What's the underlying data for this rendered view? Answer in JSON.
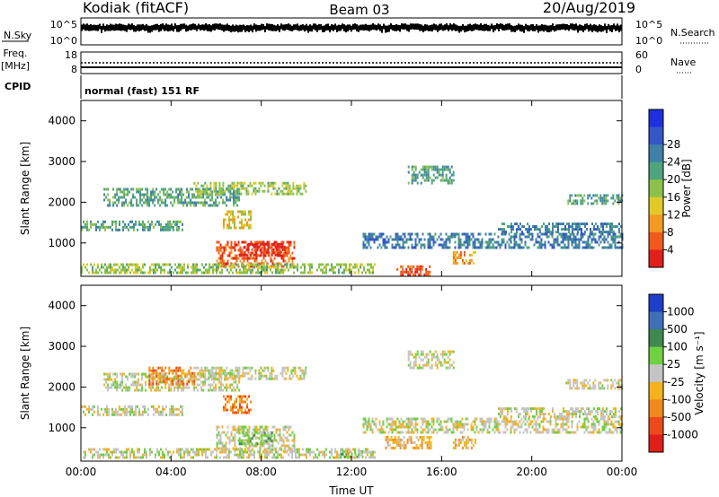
{
  "header": {
    "station": "Kodiak (fitACF)",
    "beam": "Beam 03",
    "date": "20/Aug/2019"
  },
  "top_panels": {
    "nsky_label": "N.Sky",
    "nsky_ticks": [
      "10^5",
      "10^0"
    ],
    "nsearch_label": "N.Search",
    "nsearch_ticks": [
      "10^5",
      "10^0"
    ],
    "freq_label_line1": "Freq.",
    "freq_label_line2": "[MHz]",
    "freq_ticks": [
      "18",
      "8"
    ],
    "nave_label": "Nave",
    "nave_ticks": [
      "60",
      "0"
    ],
    "cpid_label": "CPID",
    "cpid_value": "normal (fast) 151 RF"
  },
  "chart_data": [
    {
      "type": "heatmap",
      "name": "power",
      "ylabel": "Slant Range [km]",
      "xlabel": "Time UT",
      "ylim": [
        180,
        4500
      ],
      "yticks": [
        "1000",
        "2000",
        "3000",
        "4000"
      ],
      "colorbar_label": "Power [dB]",
      "colorbar_ticks": [
        "4",
        "8",
        "12",
        "16",
        "20",
        "24",
        "28"
      ],
      "colors": [
        "#1f2fe0",
        "#3557c6",
        "#3f7fa8",
        "#4fa47e",
        "#8bc14a",
        "#e2c92a",
        "#f29a22",
        "#ef5a1c",
        "#e0201a"
      ],
      "echo_regions": [
        {
          "t": [
            0.0,
            4.5
          ],
          "r": [
            1300,
            1550
          ],
          "level": 3
        },
        {
          "t": [
            1.0,
            7.0
          ],
          "r": [
            1900,
            2350
          ],
          "level": 3
        },
        {
          "t": [
            5.0,
            10.0
          ],
          "r": [
            2200,
            2500
          ],
          "level": 4
        },
        {
          "t": [
            6.3,
            7.5
          ],
          "r": [
            1400,
            1800
          ],
          "level": 5
        },
        {
          "t": [
            6.0,
            9.5
          ],
          "r": [
            400,
            1050
          ],
          "level": 7
        },
        {
          "t": [
            7.0,
            9.0
          ],
          "r": [
            700,
            1000
          ],
          "level": 8
        },
        {
          "t": [
            0.0,
            13.0
          ],
          "r": [
            250,
            500
          ],
          "level": 4
        },
        {
          "t": [
            14.0,
            15.5
          ],
          "r": [
            250,
            450
          ],
          "level": 7
        },
        {
          "t": [
            16.5,
            17.5
          ],
          "r": [
            500,
            800
          ],
          "level": 6
        },
        {
          "t": [
            14.5,
            16.5
          ],
          "r": [
            2500,
            2900
          ],
          "level": 3
        },
        {
          "t": [
            18.5,
            24.0
          ],
          "r": [
            1300,
            1500
          ],
          "level": 2
        },
        {
          "t": [
            12.5,
            24.0
          ],
          "r": [
            900,
            1250
          ],
          "level": 2
        },
        {
          "t": [
            21.5,
            24.0
          ],
          "r": [
            2000,
            2200
          ],
          "level": 3
        }
      ]
    },
    {
      "type": "heatmap",
      "name": "velocity",
      "ylabel": "Slant Range [km]",
      "xlabel": "Time UT",
      "ylim": [
        180,
        4500
      ],
      "yticks": [
        "1000",
        "2000",
        "3000",
        "4000"
      ],
      "colorbar_label": "Velocity [m s⁻¹]",
      "colorbar_ticks": [
        "1000",
        "500",
        "100",
        "25",
        "-25",
        "-100",
        "-500",
        "-1000"
      ],
      "colors": [
        "#1f3fc8",
        "#3f6fb8",
        "#3e8a4e",
        "#6fd040",
        "#c4c4c4",
        "#f5b21e",
        "#f08a1e",
        "#ec4a1a",
        "#e01f1a"
      ],
      "echo_regions": [
        {
          "t": [
            0.0,
            4.5
          ],
          "r": [
            1300,
            1550
          ],
          "level": 4
        },
        {
          "t": [
            1.0,
            7.0
          ],
          "r": [
            1900,
            2350
          ],
          "level": 4
        },
        {
          "t": [
            5.0,
            10.0
          ],
          "r": [
            2200,
            2500
          ],
          "level": 4
        },
        {
          "t": [
            6.3,
            7.5
          ],
          "r": [
            1400,
            1800
          ],
          "level": 6
        },
        {
          "t": [
            3.0,
            5.0
          ],
          "r": [
            2100,
            2500
          ],
          "level": 6
        },
        {
          "t": [
            6.0,
            9.5
          ],
          "r": [
            400,
            1050
          ],
          "level": 4
        },
        {
          "t": [
            7.0,
            8.5
          ],
          "r": [
            600,
            900
          ],
          "level": 3
        },
        {
          "t": [
            11.5,
            12.5
          ],
          "r": [
            300,
            450
          ],
          "level": 3
        },
        {
          "t": [
            0.0,
            13.0
          ],
          "r": [
            250,
            500
          ],
          "level": 4
        },
        {
          "t": [
            13.5,
            15.5
          ],
          "r": [
            500,
            800
          ],
          "level": 5
        },
        {
          "t": [
            16.5,
            17.5
          ],
          "r": [
            500,
            800
          ],
          "level": 5
        },
        {
          "t": [
            14.5,
            16.5
          ],
          "r": [
            2500,
            2900
          ],
          "level": 4
        },
        {
          "t": [
            18.5,
            24.0
          ],
          "r": [
            1300,
            1500
          ],
          "level": 4
        },
        {
          "t": [
            12.5,
            24.0
          ],
          "r": [
            900,
            1250
          ],
          "level": 4
        },
        {
          "t": [
            21.5,
            24.0
          ],
          "r": [
            2000,
            2200
          ],
          "level": 4
        }
      ]
    }
  ],
  "time_axis": {
    "ticks": [
      "00:00",
      "04:00",
      "08:00",
      "12:00",
      "16:00",
      "20:00",
      "00:00"
    ],
    "label": "Time UT"
  }
}
